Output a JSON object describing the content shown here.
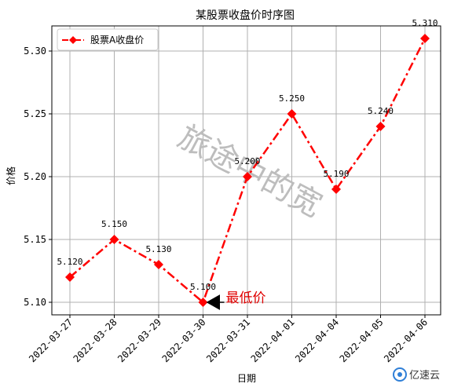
{
  "chart_data": {
    "type": "line",
    "title": "某股票收盘价时序图",
    "xlabel": "日期",
    "ylabel": "价格",
    "categories": [
      "2022-03-27",
      "2022-03-28",
      "2022-03-29",
      "2022-03-30",
      "2022-03-31",
      "2022-04-01",
      "2022-04-04",
      "2022-04-05",
      "2022-04-06"
    ],
    "series": [
      {
        "name": "股票A收盘价",
        "values": [
          5.12,
          5.15,
          5.13,
          5.1,
          5.2,
          5.25,
          5.19,
          5.24,
          5.31
        ],
        "labels": [
          "5.120",
          "5.150",
          "5.130",
          "5.100",
          "5.200",
          "5.250",
          "5.190",
          "5.240",
          "5.310"
        ],
        "color": "#ff0000",
        "line_style": "dash-dot",
        "marker": "diamond"
      }
    ],
    "ylim": [
      5.09,
      5.32
    ],
    "yticks": [
      "5.10",
      "5.15",
      "5.20",
      "5.25",
      "5.30"
    ],
    "ytick_values": [
      5.1,
      5.15,
      5.2,
      5.25,
      5.3
    ],
    "grid": true,
    "legend_position": "top-left",
    "xtick_rotation": 45,
    "annotation": {
      "text": "最低价",
      "target_index": 3,
      "color": "#e00000"
    }
  },
  "watermark": {
    "text": "旅途中的宽"
  },
  "logo": {
    "text": "亿速云",
    "color": "#2f7fd7"
  }
}
